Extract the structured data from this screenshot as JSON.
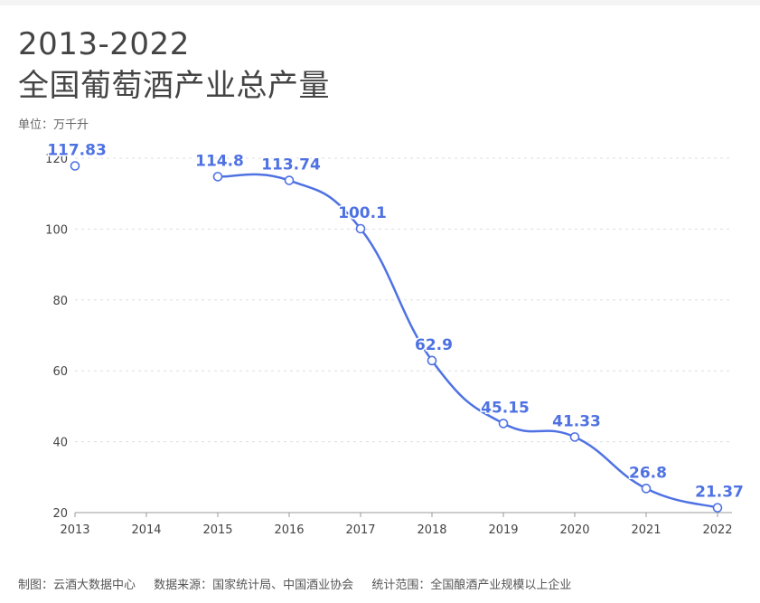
{
  "header": {
    "title_line1": "2013-2022",
    "title_line2": "全国葡萄酒产业总产量",
    "unit": "单位：万千升"
  },
  "footer": {
    "maker": "制图：云酒大数据中心",
    "source": "数据来源：国家统计局、中国酒业协会",
    "scope": "统计范围：全国酿酒产业规模以上企业"
  },
  "chart_data": {
    "type": "line",
    "categories": [
      "2013",
      "2014",
      "2015",
      "2016",
      "2017",
      "2018",
      "2019",
      "2020",
      "2021",
      "2022"
    ],
    "series": [
      {
        "values": [
          117.83,
          null,
          114.8,
          113.74,
          100.1,
          62.9,
          45.15,
          41.33,
          26.8,
          21.37
        ]
      }
    ],
    "data_labels": [
      "117.83",
      "",
      "114.8",
      "113.74",
      "100.1",
      "62.9",
      "45.15",
      "41.33",
      "26.8",
      "21.37"
    ],
    "ylim": [
      20,
      120
    ],
    "yticks": [
      20,
      40,
      60,
      80,
      100,
      120
    ],
    "grid": true,
    "line_color": "#4f72e3",
    "label_color": "#4f72e3",
    "smooth": true
  }
}
